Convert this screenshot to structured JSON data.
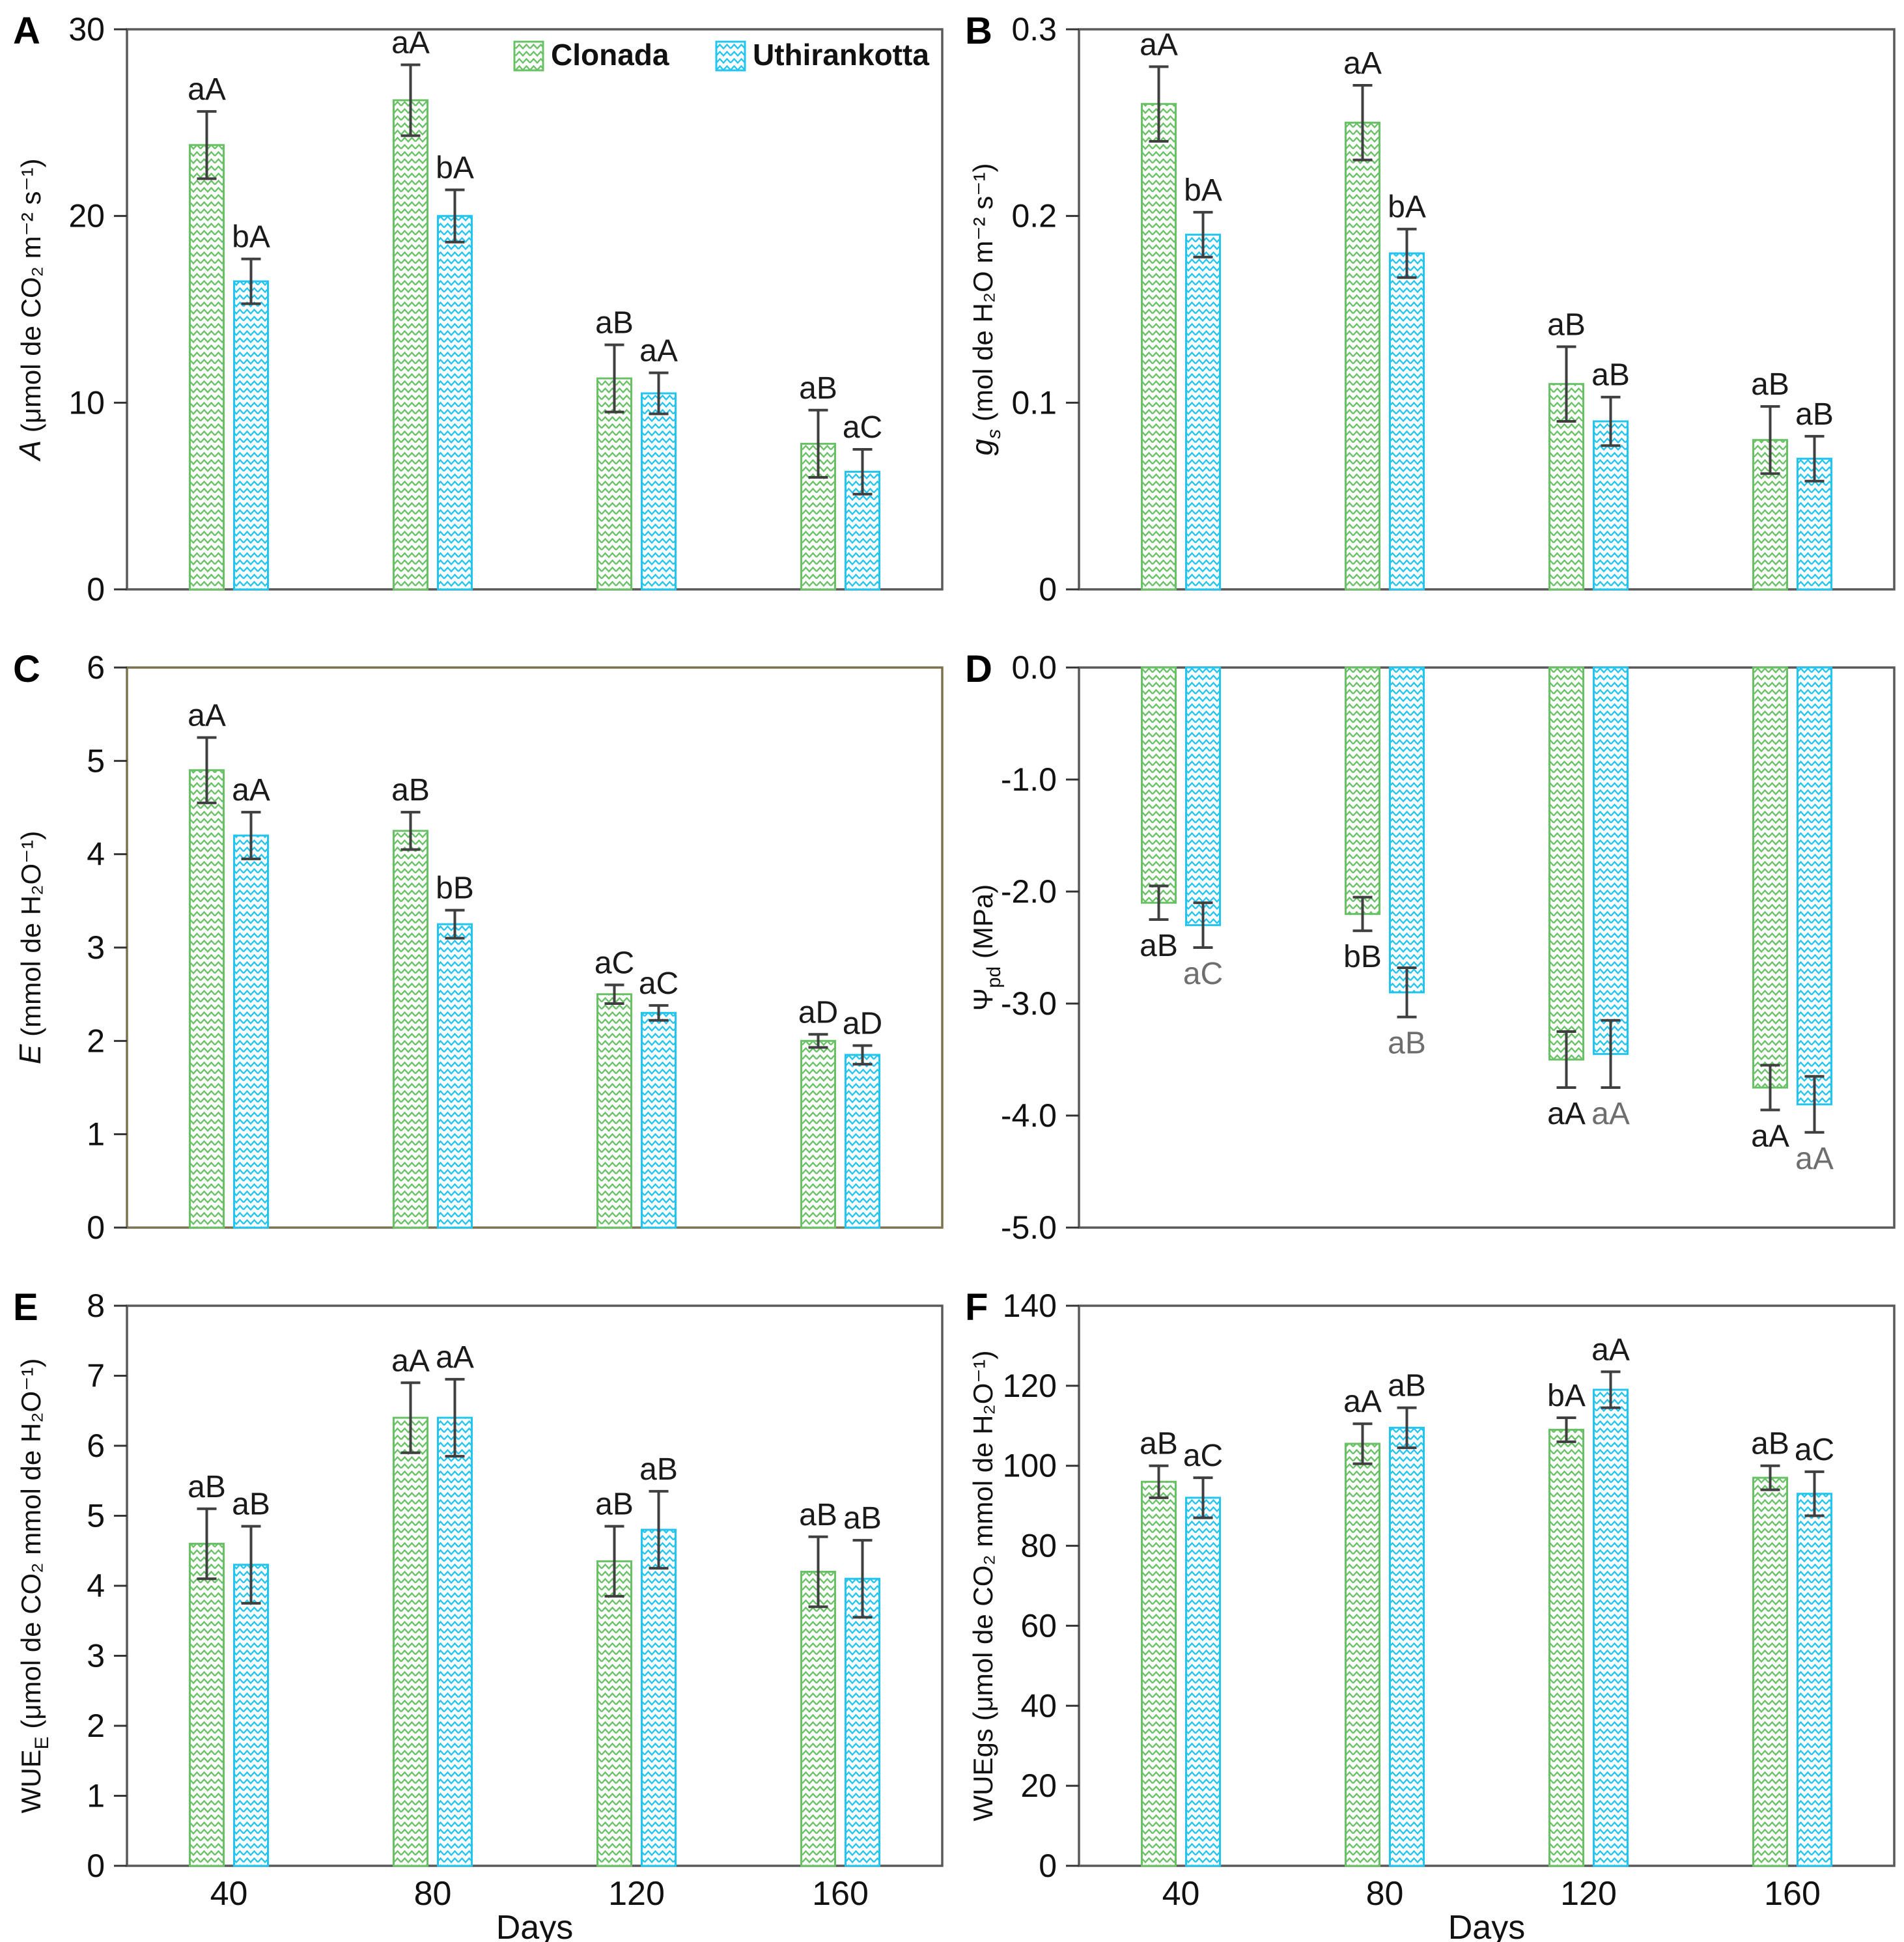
{
  "figure": {
    "xlabel": "Days",
    "categories": [
      "40",
      "80",
      "120",
      "160"
    ],
    "legend": {
      "position": "top-right-panel-A",
      "items": [
        {
          "label": "Clonada",
          "color": "#68c164"
        },
        {
          "label": "Uthirankotta",
          "color": "#22c4f0"
        }
      ]
    },
    "colors": {
      "clonada": "#68c164",
      "uthirankotta": "#22c4f0",
      "error_bar": "#3f3f3f",
      "panel_border": "#595959",
      "panel_c_border": "#7b7250",
      "label_black": "#1a1a1a",
      "label_gray": "#6e6e6e"
    }
  },
  "chart_data": [
    {
      "type": "bar",
      "panel": "A",
      "ylabel_segments": [
        {
          "text": "A",
          "style": "italic"
        },
        {
          "text": " (μmol de CO₂ m⁻² s⁻¹)",
          "style": "normal"
        }
      ],
      "ylim": [
        0,
        30
      ],
      "yticks": [
        {
          "v": 0,
          "label": "0"
        },
        {
          "v": 10,
          "label": "10"
        },
        {
          "v": 20,
          "label": "20"
        },
        {
          "v": 30,
          "label": "30"
        }
      ],
      "direction": "up",
      "border": "default",
      "grid": false,
      "show_x_labels": false,
      "show_legend": true,
      "categories": [
        "40",
        "80",
        "120",
        "160"
      ],
      "series": [
        {
          "name": "Clonada",
          "values": [
            23.8,
            26.2,
            11.3,
            7.8
          ],
          "errors": [
            1.8,
            1.9,
            1.8,
            1.8
          ],
          "sig_labels": [
            "aA",
            "aA",
            "aB",
            "aB"
          ],
          "sig_color": "black"
        },
        {
          "name": "Uthirankotta",
          "values": [
            16.5,
            20.0,
            10.5,
            6.3
          ],
          "errors": [
            1.2,
            1.4,
            1.1,
            1.2
          ],
          "sig_labels": [
            "bA",
            "bA",
            "aA",
            "aC"
          ],
          "sig_color": "black"
        }
      ]
    },
    {
      "type": "bar",
      "panel": "B",
      "ylabel_segments": [
        {
          "text": "g",
          "style": "italic"
        },
        {
          "text": "s",
          "style": "sub-italic"
        },
        {
          "text": " (mol de H₂O m⁻² s⁻¹)",
          "style": "normal"
        }
      ],
      "ylim": [
        0,
        0.3
      ],
      "yticks": [
        {
          "v": 0,
          "label": "0"
        },
        {
          "v": 0.1,
          "label": "0.1"
        },
        {
          "v": 0.2,
          "label": "0.2"
        },
        {
          "v": 0.3,
          "label": "0.3"
        }
      ],
      "direction": "up",
      "border": "default",
      "grid": false,
      "show_x_labels": false,
      "show_legend": false,
      "categories": [
        "40",
        "80",
        "120",
        "160"
      ],
      "series": [
        {
          "name": "Clonada",
          "values": [
            0.26,
            0.25,
            0.11,
            0.08
          ],
          "errors": [
            0.02,
            0.02,
            0.02,
            0.018
          ],
          "sig_labels": [
            "aA",
            "aA",
            "aB",
            "aB"
          ],
          "sig_color": "black"
        },
        {
          "name": "Uthirankotta",
          "values": [
            0.19,
            0.18,
            0.09,
            0.07
          ],
          "errors": [
            0.012,
            0.013,
            0.013,
            0.012
          ],
          "sig_labels": [
            "bA",
            "bA",
            "aB",
            "aB"
          ],
          "sig_color": "black"
        }
      ]
    },
    {
      "type": "bar",
      "panel": "C",
      "ylabel_segments": [
        {
          "text": "E",
          "style": "italic"
        },
        {
          "text": " (mmol de H₂O⁻¹)",
          "style": "normal"
        }
      ],
      "ylim": [
        0,
        6
      ],
      "yticks": [
        {
          "v": 0,
          "label": "0"
        },
        {
          "v": 1,
          "label": "1"
        },
        {
          "v": 2,
          "label": "2"
        },
        {
          "v": 3,
          "label": "3"
        },
        {
          "v": 4,
          "label": "4"
        },
        {
          "v": 5,
          "label": "5"
        },
        {
          "v": 6,
          "label": "6"
        }
      ],
      "direction": "up",
      "border": "olive",
      "grid": false,
      "show_x_labels": false,
      "show_legend": false,
      "categories": [
        "40",
        "80",
        "120",
        "160"
      ],
      "series": [
        {
          "name": "Clonada",
          "values": [
            4.9,
            4.25,
            2.5,
            2.0
          ],
          "errors": [
            0.35,
            0.2,
            0.1,
            0.07
          ],
          "sig_labels": [
            "aA",
            "aB",
            "aC",
            "aD"
          ],
          "sig_color": "black"
        },
        {
          "name": "Uthirankotta",
          "values": [
            4.2,
            3.25,
            2.3,
            1.85
          ],
          "errors": [
            0.25,
            0.15,
            0.08,
            0.1
          ],
          "sig_labels": [
            "aA",
            "bB",
            "aC",
            "aD"
          ],
          "sig_color": "black"
        }
      ]
    },
    {
      "type": "bar",
      "panel": "D",
      "ylabel_segments": [
        {
          "text": "Ψ",
          "style": "normal"
        },
        {
          "text": "pd",
          "style": "sub"
        },
        {
          "text": " (MPa)",
          "style": "normal"
        }
      ],
      "ylim": [
        -5,
        0
      ],
      "yticks": [
        {
          "v": 0,
          "label": "0.0"
        },
        {
          "v": -1,
          "label": "-1.0"
        },
        {
          "v": -2,
          "label": "-2.0"
        },
        {
          "v": -3,
          "label": "-3.0"
        },
        {
          "v": -4,
          "label": "-4.0"
        },
        {
          "v": -5,
          "label": "-5.0"
        }
      ],
      "direction": "down",
      "border": "default",
      "grid": false,
      "show_x_labels": false,
      "show_legend": false,
      "categories": [
        "40",
        "80",
        "120",
        "160"
      ],
      "series": [
        {
          "name": "Clonada",
          "values": [
            -2.1,
            -2.2,
            -3.5,
            -3.75
          ],
          "errors": [
            0.15,
            0.15,
            0.25,
            0.2
          ],
          "sig_labels": [
            "aB",
            "bB",
            "aA",
            "aA"
          ],
          "sig_color": "black"
        },
        {
          "name": "Uthirankotta",
          "values": [
            -2.3,
            -2.9,
            -3.45,
            -3.9
          ],
          "errors": [
            0.2,
            0.22,
            0.3,
            0.25
          ],
          "sig_labels": [
            "aC",
            "aB",
            "aA",
            "aA"
          ],
          "sig_color": "gray"
        }
      ]
    },
    {
      "type": "bar",
      "panel": "E",
      "ylabel_segments": [
        {
          "text": "WUE",
          "style": "normal"
        },
        {
          "text": "E",
          "style": "sub"
        },
        {
          "text": " (μmol de CO₂  mmol de H₂O⁻¹)",
          "style": "normal"
        }
      ],
      "ylim": [
        0,
        8
      ],
      "yticks": [
        {
          "v": 0,
          "label": "0"
        },
        {
          "v": 1,
          "label": "1"
        },
        {
          "v": 2,
          "label": "2"
        },
        {
          "v": 3,
          "label": "3"
        },
        {
          "v": 4,
          "label": "4"
        },
        {
          "v": 5,
          "label": "5"
        },
        {
          "v": 6,
          "label": "6"
        },
        {
          "v": 7,
          "label": "7"
        },
        {
          "v": 8,
          "label": "8"
        }
      ],
      "direction": "up",
      "border": "default",
      "grid": false,
      "show_x_labels": true,
      "show_legend": false,
      "categories": [
        "40",
        "80",
        "120",
        "160"
      ],
      "series": [
        {
          "name": "Clonada",
          "values": [
            4.6,
            6.4,
            4.35,
            4.2
          ],
          "errors": [
            0.5,
            0.5,
            0.5,
            0.5
          ],
          "sig_labels": [
            "aB",
            "aA",
            "aB",
            "aB"
          ],
          "sig_color": "black"
        },
        {
          "name": "Uthirankotta",
          "values": [
            4.3,
            6.4,
            4.8,
            4.1
          ],
          "errors": [
            0.55,
            0.55,
            0.55,
            0.55
          ],
          "sig_labels": [
            "aB",
            "aA",
            "aB",
            "aB"
          ],
          "sig_color": "black"
        }
      ]
    },
    {
      "type": "bar",
      "panel": "F",
      "ylabel_segments": [
        {
          "text": "WUEgs",
          "style": "normal"
        },
        {
          "text": " (μmol de CO₂  mmol de H₂O⁻¹)",
          "style": "normal"
        }
      ],
      "ylim": [
        0,
        140
      ],
      "yticks": [
        {
          "v": 0,
          "label": "0"
        },
        {
          "v": 20,
          "label": "20"
        },
        {
          "v": 40,
          "label": "40"
        },
        {
          "v": 60,
          "label": "60"
        },
        {
          "v": 80,
          "label": "80"
        },
        {
          "v": 100,
          "label": "100"
        },
        {
          "v": 120,
          "label": "120"
        },
        {
          "v": 140,
          "label": "140"
        }
      ],
      "direction": "up",
      "border": "default",
      "grid": false,
      "show_x_labels": true,
      "show_legend": false,
      "categories": [
        "40",
        "80",
        "120",
        "160"
      ],
      "series": [
        {
          "name": "Clonada",
          "values": [
            96,
            105.5,
            109,
            97
          ],
          "errors": [
            4,
            5,
            3,
            3
          ],
          "sig_labels": [
            "aB",
            "aA",
            "bA",
            "aB"
          ],
          "sig_color": "black"
        },
        {
          "name": "Uthirankotta",
          "values": [
            92,
            109.5,
            119,
            93
          ],
          "errors": [
            5,
            5,
            4.5,
            5.5
          ],
          "sig_labels": [
            "aC",
            "aB",
            "aA",
            "aC"
          ],
          "sig_color": "black"
        }
      ]
    }
  ]
}
